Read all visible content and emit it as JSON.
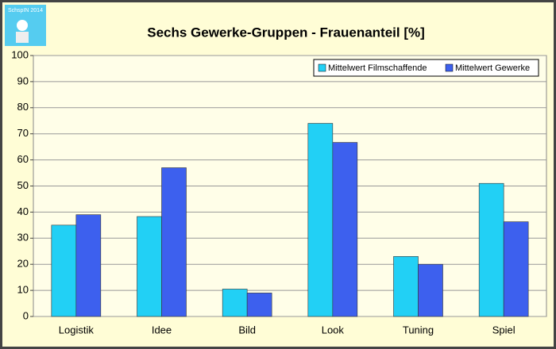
{
  "logo_text": "SchspIN 2014",
  "chart_data": {
    "type": "bar",
    "title": "Sechs Gewerke-Gruppen - Frauenanteil [%]",
    "categories": [
      "Logistik",
      "Idee",
      "Bild",
      "Look",
      "Tuning",
      "Spiel"
    ],
    "series": [
      {
        "name": "Mittelwert Filmschaffende",
        "color": "#22d0f5",
        "values": [
          35,
          38.3,
          10.5,
          74,
          23,
          51
        ]
      },
      {
        "name": "Mittelwert Gewerke",
        "color": "#3d60ee",
        "values": [
          39,
          57,
          9,
          66.7,
          20,
          36.3
        ]
      }
    ],
    "ylim": [
      0,
      100
    ],
    "yticks": [
      0,
      10,
      20,
      30,
      40,
      50,
      60,
      70,
      80,
      90,
      100
    ],
    "grid": true,
    "legend": "top-right"
  }
}
